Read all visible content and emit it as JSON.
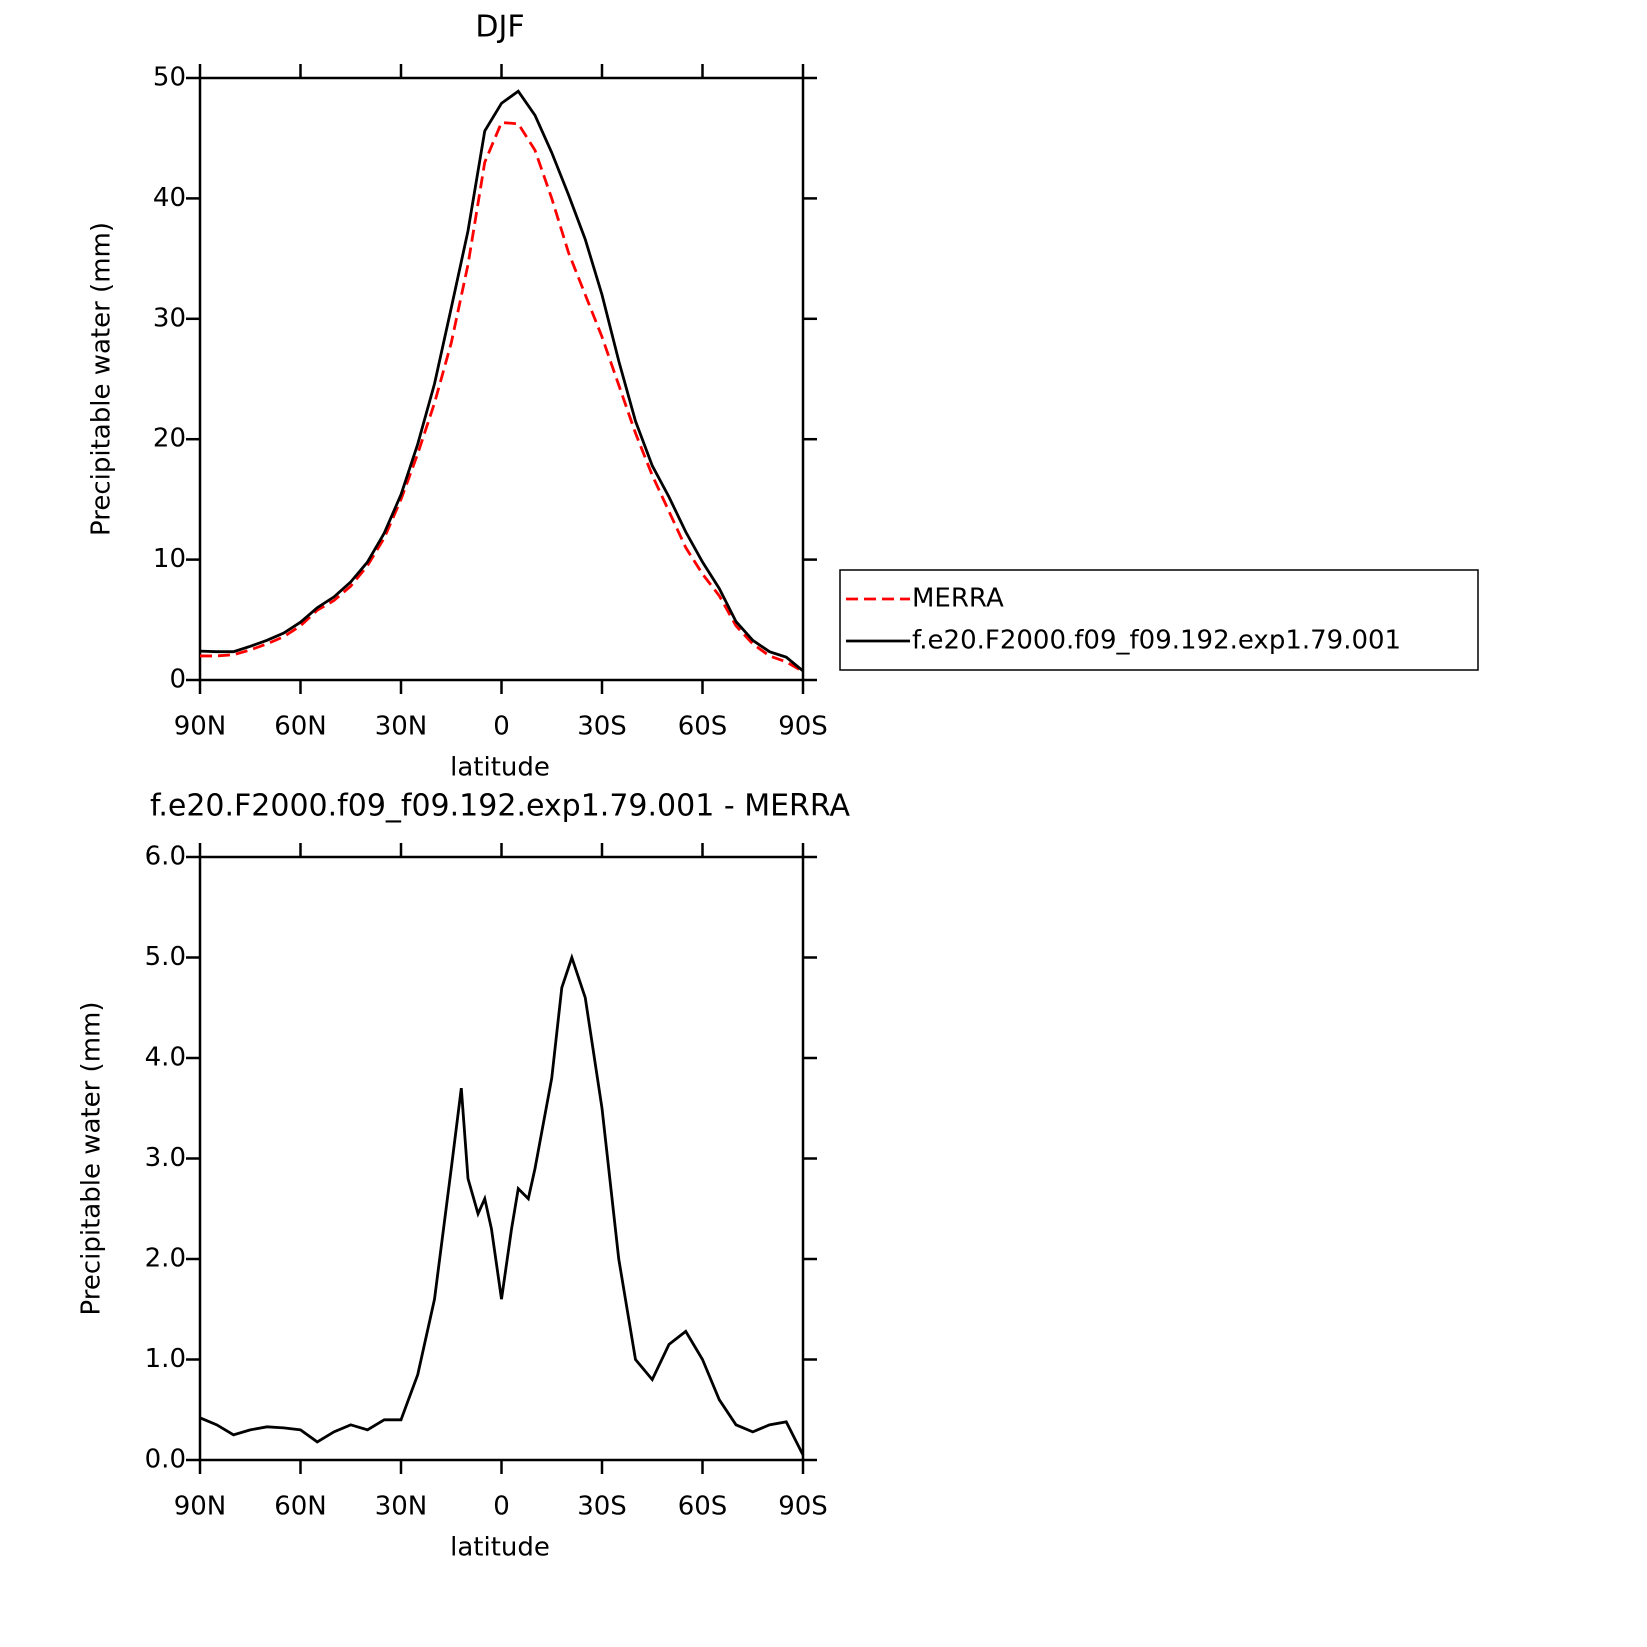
{
  "chart_data": [
    {
      "type": "line",
      "title": "DJF",
      "xlabel": "latitude",
      "ylabel": "Precipitable water (mm)",
      "x": [
        90,
        85,
        80,
        75,
        70,
        65,
        60,
        55,
        50,
        45,
        40,
        35,
        30,
        25,
        20,
        15,
        10,
        5,
        0,
        -5,
        -10,
        -15,
        -20,
        -25,
        -30,
        -35,
        -40,
        -45,
        -50,
        -55,
        -60,
        -65,
        -70,
        -75,
        -80,
        -85,
        -90
      ],
      "series": [
        {
          "name": "MERRA",
          "color": "#ff0000",
          "linestyle": "dashed",
          "values": [
            2.0,
            2.0,
            2.1,
            2.5,
            3.0,
            3.6,
            4.5,
            5.8,
            6.6,
            7.8,
            9.5,
            11.8,
            15.0,
            18.8,
            23.0,
            28.0,
            34.5,
            43.0,
            46.3,
            46.2,
            44,
            40,
            35.5,
            32,
            28.5,
            24.5,
            20.5,
            17,
            14,
            11,
            8.8,
            7,
            4.5,
            3,
            2,
            1.5,
            0.7
          ]
        },
        {
          "name": "f.e20.F2000.f09_f09.192.exp1.79.001",
          "color": "#000000",
          "linestyle": "solid",
          "values": [
            2.4,
            2.35,
            2.35,
            2.8,
            3.3,
            3.9,
            4.8,
            6.0,
            6.9,
            8.15,
            9.8,
            12.2,
            15.4,
            19.6,
            24.6,
            30.9,
            37.3,
            45.6,
            47.9,
            48.9,
            46.9,
            43.8,
            40.3,
            36.6,
            32,
            26.5,
            21.5,
            17.8,
            15.2,
            12.3,
            9.8,
            7.6,
            4.85,
            3.3,
            2.35,
            1.9,
            0.75
          ]
        }
      ],
      "xlim": [
        90,
        -90
      ],
      "xticks": [
        {
          "value": 90,
          "label": "90N"
        },
        {
          "value": 60,
          "label": "60N"
        },
        {
          "value": 30,
          "label": "30N"
        },
        0,
        {
          "value": -30,
          "label": "30S"
        },
        {
          "value": -60,
          "label": "60S"
        },
        {
          "value": -90,
          "label": "90S"
        }
      ],
      "ylim": [
        0,
        50
      ],
      "yticks": [
        0,
        10,
        20,
        30,
        40,
        50
      ],
      "legend": "right"
    },
    {
      "type": "line",
      "title": "f.e20.F2000.f09_f09.192.exp1.79.001 - MERRA",
      "xlabel": "latitude",
      "ylabel": "Precipitable water (mm)",
      "x": [
        90,
        85,
        80,
        75,
        70,
        65,
        60,
        55,
        50,
        45,
        40,
        35,
        30,
        25,
        20,
        15,
        12,
        10,
        7,
        5,
        3,
        0,
        -3,
        -5,
        -8,
        -10,
        -15,
        -18,
        -21,
        -25,
        -30,
        -35,
        -40,
        -45,
        -50,
        -55,
        -60,
        -65,
        -70,
        -75,
        -80,
        -85,
        -90
      ],
      "series": [
        {
          "color": "#000000",
          "linestyle": "solid",
          "values": [
            0.42,
            0.35,
            0.25,
            0.3,
            0.33,
            0.32,
            0.3,
            0.18,
            0.28,
            0.35,
            0.3,
            0.4,
            0.4,
            0.85,
            1.6,
            2.9,
            3.7,
            2.8,
            2.45,
            2.6,
            2.3,
            1.6,
            2.3,
            2.7,
            2.6,
            2.9,
            3.8,
            4.7,
            5.0,
            4.6,
            3.5,
            2.0,
            1.0,
            0.8,
            1.15,
            1.28,
            1.0,
            0.6,
            0.35,
            0.28,
            0.35,
            0.38,
            0.05
          ]
        }
      ],
      "xlim": [
        90,
        -90
      ],
      "xticks": [
        {
          "value": 90,
          "label": "90N"
        },
        {
          "value": 60,
          "label": "60N"
        },
        {
          "value": 30,
          "label": "30N"
        },
        0,
        {
          "value": -30,
          "label": "30S"
        },
        {
          "value": -60,
          "label": "60S"
        },
        {
          "value": -90,
          "label": "90S"
        }
      ],
      "ylim": [
        0,
        6
      ],
      "yticks": [
        {
          "value": 0,
          "label": "0.0"
        },
        {
          "value": 1,
          "label": "1.0"
        },
        {
          "value": 2,
          "label": "2.0"
        },
        {
          "value": 3,
          "label": "3.0"
        },
        {
          "value": 4,
          "label": "4.0"
        },
        {
          "value": 5,
          "label": "5.0"
        },
        {
          "value": 6,
          "label": "6.0"
        }
      ]
    }
  ]
}
